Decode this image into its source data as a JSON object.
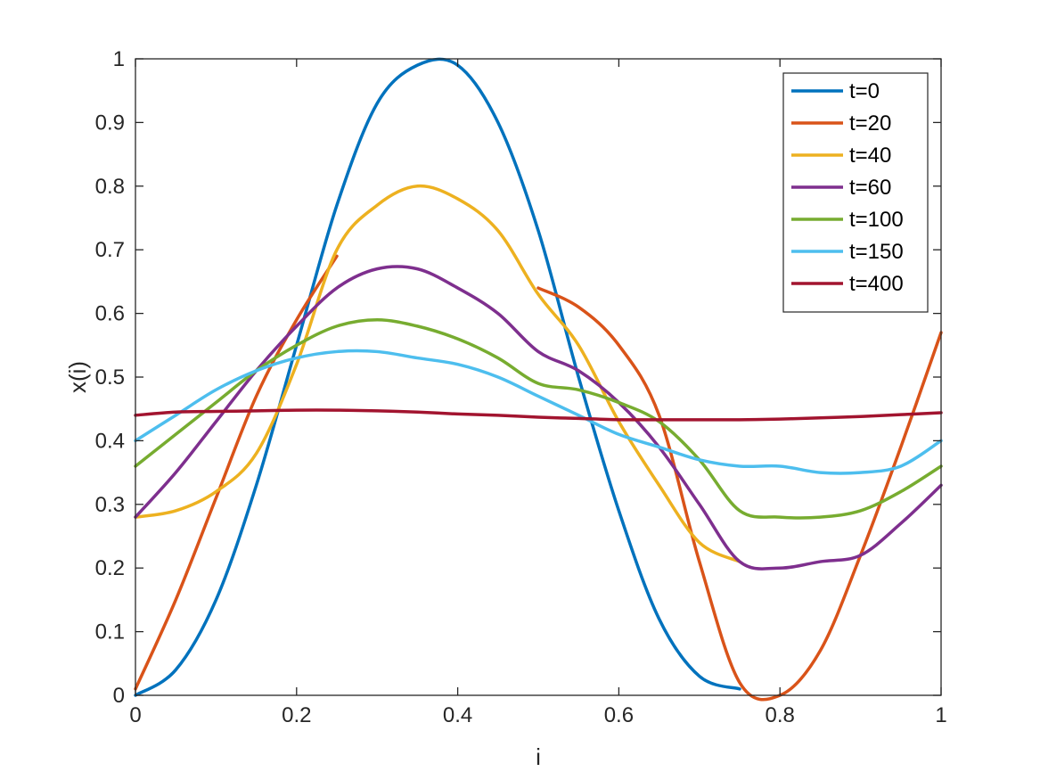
{
  "chart_data": {
    "type": "line",
    "title": "",
    "xlabel": "i",
    "ylabel": "x(i)",
    "xlim": [
      0,
      1
    ],
    "ylim": [
      0,
      1
    ],
    "xticks": [
      "0",
      "0.2",
      "0.4",
      "0.6",
      "0.8",
      "1"
    ],
    "yticks": [
      "0",
      "0.1",
      "0.2",
      "0.3",
      "0.4",
      "0.5",
      "0.6",
      "0.7",
      "0.8",
      "0.9",
      "1"
    ],
    "grid": false,
    "legend_position": "top-right",
    "x": [
      0.0,
      0.05,
      0.1,
      0.15,
      0.2,
      0.25,
      0.3,
      0.35,
      0.4,
      0.45,
      0.5,
      0.55,
      0.6,
      0.65,
      0.7,
      0.75,
      0.8,
      0.85,
      0.9,
      0.95,
      1.0
    ],
    "series": [
      {
        "name": "t=0",
        "color": "#0072BD",
        "values": [
          0.0,
          0.04,
          0.15,
          0.33,
          0.55,
          0.77,
          0.93,
          0.99,
          0.99,
          0.9,
          0.73,
          0.5,
          0.29,
          0.12,
          0.03,
          0.01,
          null,
          null,
          null,
          null,
          null
        ]
      },
      {
        "name": "t=20",
        "color": "#D95319",
        "values": [
          0.01,
          0.15,
          0.31,
          0.47,
          0.59,
          0.69,
          null,
          null,
          null,
          null,
          0.64,
          0.61,
          0.55,
          0.44,
          0.21,
          0.02,
          0.0,
          0.07,
          0.22,
          0.39,
          0.57
        ]
      },
      {
        "name": "t=40",
        "color": "#EDB120",
        "values": [
          0.28,
          0.29,
          0.32,
          0.38,
          0.52,
          0.7,
          0.77,
          0.8,
          0.78,
          0.73,
          0.63,
          0.55,
          0.43,
          0.33,
          0.24,
          0.21,
          null,
          null,
          null,
          null,
          null
        ]
      },
      {
        "name": "t=60",
        "color": "#7E2F8E",
        "values": [
          0.28,
          0.35,
          0.43,
          0.51,
          0.58,
          0.64,
          0.67,
          0.67,
          0.64,
          0.6,
          0.54,
          0.51,
          0.46,
          0.39,
          0.3,
          0.21,
          0.2,
          0.21,
          0.22,
          0.27,
          0.33
        ]
      },
      {
        "name": "t=100",
        "color": "#77AC30",
        "values": [
          0.36,
          0.41,
          0.46,
          0.51,
          0.55,
          0.58,
          0.59,
          0.58,
          0.56,
          0.53,
          0.49,
          0.48,
          0.46,
          0.43,
          0.37,
          0.29,
          0.28,
          0.28,
          0.29,
          0.32,
          0.36
        ]
      },
      {
        "name": "t=150",
        "color": "#4DBEEE",
        "values": [
          0.4,
          0.44,
          0.48,
          0.51,
          0.53,
          0.54,
          0.54,
          0.53,
          0.52,
          0.5,
          0.47,
          0.44,
          0.41,
          0.39,
          0.37,
          0.36,
          0.36,
          0.35,
          0.35,
          0.36,
          0.4
        ]
      },
      {
        "name": "t=400",
        "color": "#A2142F",
        "values": [
          0.44,
          0.445,
          0.446,
          0.447,
          0.448,
          0.448,
          0.447,
          0.445,
          0.442,
          0.44,
          0.437,
          0.435,
          0.433,
          0.433,
          0.433,
          0.433,
          0.434,
          0.436,
          0.438,
          0.441,
          0.444
        ]
      }
    ]
  }
}
